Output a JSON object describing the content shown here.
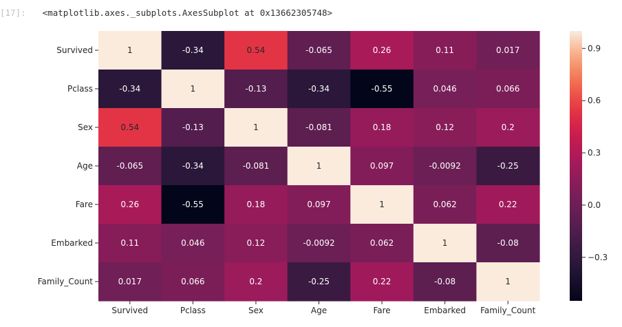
{
  "cell": {
    "prompt_number": "[17]:",
    "output_text": "<matplotlib.axes._subplots.AxesSubplot at 0x13662305748>"
  },
  "chart_data": {
    "type": "heatmap",
    "title": "",
    "xlabel": "",
    "ylabel": "",
    "row_labels": [
      "Survived",
      "Pclass",
      "Sex",
      "Age",
      "Fare",
      "Embarked",
      "Family_Count"
    ],
    "col_labels": [
      "Survived",
      "Pclass",
      "Sex",
      "Age",
      "Fare",
      "Embarked",
      "Family_Count"
    ],
    "values": [
      [
        1,
        -0.34,
        0.54,
        -0.065,
        0.26,
        0.11,
        0.017
      ],
      [
        -0.34,
        1,
        -0.13,
        -0.34,
        -0.55,
        0.046,
        0.066
      ],
      [
        0.54,
        -0.13,
        1,
        -0.081,
        0.18,
        0.12,
        0.2
      ],
      [
        -0.065,
        -0.34,
        -0.081,
        1,
        0.097,
        -0.0092,
        -0.25
      ],
      [
        0.26,
        -0.55,
        0.18,
        0.097,
        1,
        0.062,
        0.22
      ],
      [
        0.11,
        0.046,
        0.12,
        -0.0092,
        0.062,
        1,
        -0.08
      ],
      [
        0.017,
        0.066,
        0.2,
        -0.25,
        0.22,
        -0.08,
        1
      ]
    ],
    "annotations": [
      [
        "1",
        "-0.34",
        "0.54",
        "-0.065",
        "0.26",
        "0.11",
        "0.017"
      ],
      [
        "-0.34",
        "1",
        "-0.13",
        "-0.34",
        "-0.55",
        "0.046",
        "0.066"
      ],
      [
        "0.54",
        "-0.13",
        "1",
        "-0.081",
        "0.18",
        "0.12",
        "0.2"
      ],
      [
        "-0.065",
        "-0.34",
        "-0.081",
        "1",
        "0.097",
        "-0.0092",
        "-0.25"
      ],
      [
        "0.26",
        "-0.55",
        "0.18",
        "0.097",
        "1",
        "0.062",
        "0.22"
      ],
      [
        "0.11",
        "0.046",
        "0.12",
        "-0.0092",
        "0.062",
        "1",
        "-0.08"
      ],
      [
        "0.017",
        "0.066",
        "0.2",
        "-0.25",
        "0.22",
        "-0.08",
        "1"
      ]
    ],
    "colormap": "rocket",
    "vmin": -0.55,
    "vmax": 1,
    "colorbar": {
      "ticks": [
        0.9,
        0.6,
        0.3,
        0.0,
        -0.3
      ],
      "tick_labels": [
        "0.9",
        "0.6",
        "0.3",
        "0.0",
        "−0.3"
      ]
    },
    "grid": false
  }
}
